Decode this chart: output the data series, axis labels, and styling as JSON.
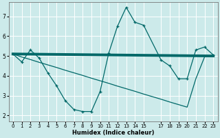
{
  "background_color": "#cceaea",
  "grid_color": "#ffffff",
  "line_color": "#006868",
  "xlabel": "Humidex (Indice chaleur)",
  "xlim": [
    -0.5,
    23.5
  ],
  "ylim": [
    1.7,
    7.7
  ],
  "xticks": [
    0,
    1,
    2,
    3,
    4,
    5,
    6,
    7,
    8,
    9,
    10,
    11,
    12,
    13,
    14,
    15,
    17,
    18,
    19,
    20,
    21,
    22,
    23
  ],
  "xtick_labels": [
    "0",
    "1",
    "2",
    "3",
    "4",
    "5",
    "6",
    "7",
    "8",
    "9",
    "10",
    "11",
    "12",
    "13",
    "14",
    "15",
    "17",
    "18",
    "19",
    "20",
    "21",
    "22",
    "23"
  ],
  "yticks": [
    2,
    3,
    4,
    5,
    6,
    7
  ],
  "thick_line_x": [
    0,
    23
  ],
  "thick_line_y": [
    5.1,
    5.0
  ],
  "zigzag_x": [
    0,
    1,
    2,
    3,
    4,
    5,
    6,
    7,
    8,
    9,
    10,
    11,
    12,
    13,
    14,
    15,
    17,
    18,
    19,
    20,
    21,
    22,
    23
  ],
  "zigzag_y": [
    5.1,
    4.7,
    5.3,
    4.9,
    4.15,
    3.5,
    2.75,
    2.3,
    2.2,
    2.2,
    3.2,
    5.15,
    6.5,
    7.45,
    6.7,
    6.55,
    4.8,
    4.5,
    3.85,
    3.85,
    5.3,
    5.45,
    5.05
  ],
  "diag_x": [
    0,
    1,
    2,
    3,
    4,
    5,
    6,
    7,
    8,
    9,
    10,
    11,
    12,
    13,
    14,
    15,
    17,
    18,
    19,
    20,
    21,
    22,
    23
  ],
  "diag_y": [
    5.1,
    4.95,
    4.82,
    4.68,
    4.55,
    4.42,
    4.28,
    4.15,
    4.02,
    3.88,
    3.75,
    3.62,
    3.48,
    3.35,
    3.22,
    3.08,
    2.82,
    2.68,
    2.55,
    2.42,
    3.85,
    4.95,
    5.0
  ]
}
